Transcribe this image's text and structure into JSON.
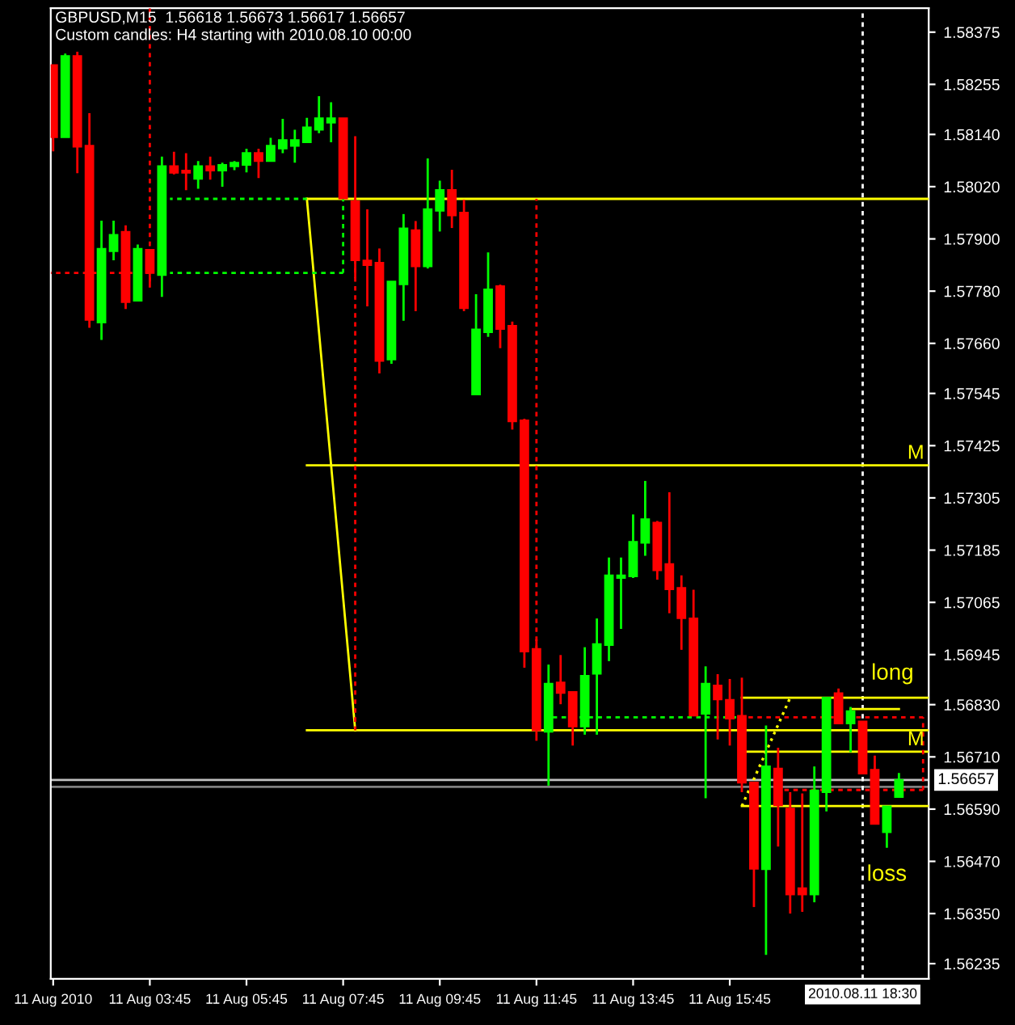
{
  "chart_data": {
    "type": "candlestick",
    "title": "GBPUSD,M15  1.56618 1.56673 1.56617 1.56657",
    "subtitle": "Custom candles: H4 starting with 2010.08.10 00:00",
    "x": [
      "2010-08-11T01:45",
      "2010-08-11T02:00",
      "2010-08-11T02:15",
      "2010-08-11T02:30",
      "2010-08-11T02:45",
      "2010-08-11T03:00",
      "2010-08-11T03:15",
      "2010-08-11T03:30",
      "2010-08-11T03:45",
      "2010-08-11T04:00",
      "2010-08-11T04:15",
      "2010-08-11T04:30",
      "2010-08-11T04:45",
      "2010-08-11T05:00",
      "2010-08-11T05:15",
      "2010-08-11T05:30",
      "2010-08-11T05:45",
      "2010-08-11T06:00",
      "2010-08-11T06:15",
      "2010-08-11T06:30",
      "2010-08-11T06:45",
      "2010-08-11T07:00",
      "2010-08-11T07:15",
      "2010-08-11T07:30",
      "2010-08-11T07:45",
      "2010-08-11T08:00",
      "2010-08-11T08:15",
      "2010-08-11T08:30",
      "2010-08-11T08:45",
      "2010-08-11T09:00",
      "2010-08-11T09:15",
      "2010-08-11T09:30",
      "2010-08-11T09:45",
      "2010-08-11T10:00",
      "2010-08-11T10:15",
      "2010-08-11T10:30",
      "2010-08-11T10:45",
      "2010-08-11T11:00",
      "2010-08-11T11:15",
      "2010-08-11T11:30",
      "2010-08-11T11:45",
      "2010-08-11T12:00",
      "2010-08-11T12:15",
      "2010-08-11T12:30",
      "2010-08-11T12:45",
      "2010-08-11T13:00",
      "2010-08-11T13:15",
      "2010-08-11T13:30",
      "2010-08-11T13:45",
      "2010-08-11T14:00",
      "2010-08-11T14:15",
      "2010-08-11T14:30",
      "2010-08-11T14:45",
      "2010-08-11T15:00",
      "2010-08-11T15:15",
      "2010-08-11T15:30",
      "2010-08-11T15:45",
      "2010-08-11T16:00",
      "2010-08-11T16:15",
      "2010-08-11T16:30",
      "2010-08-11T16:45",
      "2010-08-11T17:00",
      "2010-08-11T17:15",
      "2010-08-11T17:30",
      "2010-08-11T17:45",
      "2010-08-11T18:00",
      "2010-08-11T18:15",
      "2010-08-11T18:30",
      "2010-08-11T18:45",
      "2010-08-11T19:00",
      "2010-08-11T19:15"
    ],
    "ohlc": [
      [
        1.58299,
        1.58299,
        1.58101,
        1.58134
      ],
      [
        1.58134,
        1.58326,
        1.58134,
        1.5832
      ],
      [
        1.5832,
        1.5833,
        1.58051,
        1.58112
      ],
      [
        1.58114,
        1.58189,
        1.57696,
        1.57714
      ],
      [
        1.57708,
        1.57942,
        1.57668,
        1.57877
      ],
      [
        1.57872,
        1.57942,
        1.57851,
        1.57909
      ],
      [
        1.57916,
        1.57931,
        1.57739,
        1.57755
      ],
      [
        1.57758,
        1.57887,
        1.57758,
        1.57877
      ],
      [
        1.57875,
        1.57877,
        1.57788,
        1.57822
      ],
      [
        1.57817,
        1.58089,
        1.57767,
        1.58067
      ],
      [
        1.58067,
        1.581,
        1.58048,
        1.58052
      ],
      [
        1.58057,
        1.58097,
        1.58012,
        1.58052
      ],
      [
        1.58038,
        1.58079,
        1.58015,
        1.58067
      ],
      [
        1.58067,
        1.58089,
        1.58036,
        1.58057
      ],
      [
        1.58057,
        1.58075,
        1.5802,
        1.5807
      ],
      [
        1.58067,
        1.58079,
        1.58058,
        1.58075
      ],
      [
        1.5807,
        1.58107,
        1.58053,
        1.58097
      ],
      [
        1.58097,
        1.58107,
        1.5804,
        1.58079
      ],
      [
        1.58079,
        1.58132,
        1.58079,
        1.58114
      ],
      [
        1.58108,
        1.58176,
        1.58097,
        1.58127
      ],
      [
        1.58114,
        1.58151,
        1.58075,
        1.58127
      ],
      [
        1.58122,
        1.58178,
        1.58122,
        1.58156
      ],
      [
        1.58151,
        1.58228,
        1.58143,
        1.58177
      ],
      [
        1.58167,
        1.58214,
        1.58122,
        1.58177
      ],
      [
        1.58177,
        1.58177,
        1.57993,
        1.57993
      ],
      [
        1.57986,
        1.58136,
        1.5781,
        1.57851
      ],
      [
        1.5785,
        1.57968,
        1.57745,
        1.5784
      ],
      [
        1.57845,
        1.57878,
        1.57591,
        1.5762
      ],
      [
        1.57623,
        1.57802,
        1.57613,
        1.57802
      ],
      [
        1.57796,
        1.57957,
        1.57712,
        1.57924
      ],
      [
        1.5792,
        1.57941,
        1.57734,
        1.57837
      ],
      [
        1.57837,
        1.58085,
        1.57832,
        1.57968
      ],
      [
        1.57965,
        1.58034,
        1.57917,
        1.58012
      ],
      [
        1.58012,
        1.58059,
        1.57925,
        1.57954
      ],
      [
        1.5796,
        1.5799,
        1.57734,
        1.57741
      ],
      [
        1.57543,
        1.57773,
        1.57543,
        1.57692
      ],
      [
        1.57686,
        1.57869,
        1.57675,
        1.57784
      ],
      [
        1.57791,
        1.57795,
        1.57649,
        1.57693
      ],
      [
        1.577,
        1.5771,
        1.57462,
        1.57481
      ],
      [
        1.57483,
        1.57487,
        1.56915,
        1.56952
      ],
      [
        1.56958,
        1.5698,
        1.56747,
        1.56771
      ],
      [
        1.56768,
        1.56922,
        1.56644,
        1.56878
      ],
      [
        1.56881,
        1.56944,
        1.56831,
        1.56857
      ],
      [
        1.56859,
        1.56859,
        1.56736,
        1.5678
      ],
      [
        1.5678,
        1.56962,
        1.56761,
        1.56896
      ],
      [
        1.56901,
        1.57028,
        1.56761,
        1.56969
      ],
      [
        1.56967,
        1.57168,
        1.5693,
        1.57127
      ],
      [
        1.57121,
        1.57168,
        1.57004,
        1.57127
      ],
      [
        1.57125,
        1.57267,
        1.57121,
        1.57204
      ],
      [
        1.57202,
        1.57344,
        1.57172,
        1.57256
      ],
      [
        1.57248,
        1.57252,
        1.57117,
        1.57139
      ],
      [
        1.57153,
        1.57318,
        1.5704,
        1.57095
      ],
      [
        1.57098,
        1.57127,
        1.56956,
        1.57029
      ],
      [
        1.57028,
        1.57094,
        1.56805,
        1.56805
      ],
      [
        1.56809,
        1.56918,
        1.56615,
        1.56878
      ],
      [
        1.56874,
        1.569,
        1.5675,
        1.56842
      ],
      [
        1.56841,
        1.56889,
        1.56736,
        1.56798
      ],
      [
        1.56804,
        1.56892,
        1.56629,
        1.56651
      ],
      [
        1.56651,
        1.56651,
        1.56365,
        1.56453
      ],
      [
        1.56452,
        1.56782,
        1.56255,
        1.56688
      ],
      [
        1.56683,
        1.56731,
        1.56504,
        1.56599
      ],
      [
        1.56591,
        1.56629,
        1.5635,
        1.56394
      ],
      [
        1.56408,
        1.56626,
        1.56354,
        1.56394
      ],
      [
        1.56394,
        1.56688,
        1.56376,
        1.56633
      ],
      [
        1.56629,
        1.56846,
        1.56585,
        1.56846
      ],
      [
        1.56856,
        1.56867,
        1.56787,
        1.56787
      ],
      [
        1.56787,
        1.56825,
        1.56721,
        1.56815
      ],
      [
        1.56791,
        1.56791,
        1.56672,
        1.56672
      ],
      [
        1.5668,
        1.56713,
        1.56556,
        1.56556
      ],
      [
        1.56537,
        1.56596,
        1.56501,
        1.56596
      ],
      [
        1.56618,
        1.56673,
        1.56617,
        1.56657
      ]
    ],
    "colors": [
      "#ff0000",
      "#00ff00",
      "#ff0000",
      "#ff0000",
      "#00ff00",
      "#00ff00",
      "#ff0000",
      "#00ff00",
      "#ff0000",
      "#00ff00",
      "#ff0000",
      "#ff0000",
      "#00ff00",
      "#ff0000",
      "#00ff00",
      "#00ff00",
      "#00ff00",
      "#ff0000",
      "#00ff00",
      "#00ff00",
      "#00ff00",
      "#00ff00",
      "#00ff00",
      "#00ff00",
      "#ff0000",
      "#ff0000",
      "#ff0000",
      "#ff0000",
      "#00ff00",
      "#00ff00",
      "#ff0000",
      "#00ff00",
      "#00ff00",
      "#ff0000",
      "#ff0000",
      "#00ff00",
      "#00ff00",
      "#ff0000",
      "#ff0000",
      "#ff0000",
      "#ff0000",
      "#00ff00",
      "#ff0000",
      "#ff0000",
      "#00ff00",
      "#00ff00",
      "#00ff00",
      "#00ff00",
      "#00ff00",
      "#00ff00",
      "#ff0000",
      "#ff0000",
      "#ff0000",
      "#ff0000",
      "#00ff00",
      "#ff0000",
      "#ff0000",
      "#ff0000",
      "#ff0000",
      "#00ff00",
      "#ff0000",
      "#ff0000",
      "#ff0000",
      "#00ff00",
      "#00ff00",
      "#ff0000",
      "#00ff00",
      "#ff0000",
      "#ff0000",
      "#00ff00",
      "#00ff00"
    ],
    "series": [
      {
        "type": "line",
        "color": "#ffff00",
        "line_style": "solid",
        "x": [
          "2010-08-11T07:00",
          "2010-08-11T19:52"
        ],
        "values": [
          1.57992,
          1.57992
        ]
      },
      {
        "type": "line",
        "color": "#ffff00",
        "line_style": "solid",
        "x": [
          "2010-08-11T07:00",
          "2010-08-11T19:52"
        ],
        "values": [
          1.5738,
          1.5738
        ]
      },
      {
        "type": "line",
        "color": "#ffff00",
        "line_style": "solid",
        "x": [
          "2010-08-11T07:00",
          "2010-08-11T19:52"
        ],
        "values": [
          1.56771,
          1.56771
        ]
      },
      {
        "type": "line",
        "color": "#ffff00",
        "line_style": "solid",
        "x": [
          "2010-08-11T07:00",
          "2010-08-11T08:00"
        ],
        "values": [
          1.57992,
          1.56771
        ]
      },
      {
        "type": "line",
        "color": "#ffff00",
        "line_style": "solid",
        "x": [
          "2010-08-11T16:00",
          "2010-08-11T19:52"
        ],
        "values": [
          1.56846,
          1.56846
        ]
      },
      {
        "type": "line",
        "color": "#ffff00",
        "line_style": "solid",
        "x": [
          "2010-08-11T16:00",
          "2010-08-11T19:52"
        ],
        "values": [
          1.56722,
          1.56722
        ]
      },
      {
        "type": "line",
        "color": "#ffff00",
        "line_style": "solid",
        "x": [
          "2010-08-11T16:00",
          "2010-08-11T19:52"
        ],
        "values": [
          1.56597,
          1.56597
        ]
      },
      {
        "type": "line",
        "color": "#ffff00",
        "line_style": "dotted",
        "x": [
          "2010-08-11T16:00",
          "2010-08-11T17:00"
        ],
        "values": [
          1.56597,
          1.56846
        ]
      },
      {
        "type": "line",
        "color": "#ffff00",
        "line_style": "solid",
        "x": [
          "2010-08-11T18:15",
          "2010-08-11T19:15"
        ],
        "values": [
          1.5682,
          1.5682
        ]
      },
      {
        "type": "line",
        "color": "#ff0000",
        "line_style": "dashed",
        "x": [
          "2010-08-11T01:42",
          "2010-08-11T03:45"
        ],
        "values": [
          1.57822,
          1.57822
        ]
      },
      {
        "type": "line",
        "color": "#ff0000",
        "line_style": "dashed",
        "x": [
          "2010-08-11T03:45",
          "2010-08-11T03:45"
        ],
        "values": [
          1.5843,
          1.57802
        ]
      },
      {
        "type": "line",
        "color": "#00ff00",
        "line_style": "dashed",
        "x": [
          "2010-08-11T04:10",
          "2010-08-11T07:45"
        ],
        "values": [
          1.57822,
          1.57822
        ]
      },
      {
        "type": "line",
        "color": "#00ff00",
        "line_style": "dashed",
        "x": [
          "2010-08-11T04:10",
          "2010-08-11T07:00"
        ],
        "values": [
          1.57992,
          1.57992
        ]
      },
      {
        "type": "line",
        "color": "#00ff00",
        "line_style": "dashed",
        "x": [
          "2010-08-11T07:45",
          "2010-08-11T07:45"
        ],
        "values": [
          1.57992,
          1.57822
        ]
      },
      {
        "type": "line",
        "color": "#ff0000",
        "line_style": "dashed",
        "x": [
          "2010-08-11T08:00",
          "2010-08-11T08:00"
        ],
        "values": [
          1.57992,
          1.56771
        ]
      },
      {
        "type": "line",
        "color": "#ff0000",
        "line_style": "dashed",
        "x": [
          "2010-08-11T11:45",
          "2010-08-11T11:45"
        ],
        "values": [
          1.57992,
          1.56771
        ]
      },
      {
        "type": "line",
        "color": "#00ff00",
        "line_style": "dashed",
        "x": [
          "2010-08-11T12:00",
          "2010-08-11T15:53"
        ],
        "values": [
          1.56801,
          1.56801
        ]
      },
      {
        "type": "line",
        "color": "#ff0000",
        "line_style": "dashed",
        "x": [
          "2010-08-11T16:07",
          "2010-08-11T19:45"
        ],
        "values": [
          1.56801,
          1.56801
        ]
      },
      {
        "type": "line",
        "color": "#ff0000",
        "line_style": "dashed",
        "x": [
          "2010-08-11T19:45",
          "2010-08-11T19:45"
        ],
        "values": [
          1.56801,
          1.56634
        ]
      },
      {
        "type": "line",
        "color": "#ff0000",
        "line_style": "dashed",
        "x": [
          "2010-08-11T16:45",
          "2010-08-11T19:45"
        ],
        "values": [
          1.56634,
          1.56634
        ]
      }
    ],
    "ref_lines": [
      {
        "axis": "y",
        "value": 1.56641,
        "color": "#808080",
        "line_style": "solid"
      },
      {
        "axis": "y",
        "value": 1.56657,
        "label": "1.56657",
        "color": "#c0c0c0",
        "line_style": "solid"
      },
      {
        "axis": "x",
        "value": "2010-08-11T18:30",
        "label": "2010.08.11 18:30",
        "color": "#ffffff",
        "line_style": "dashed"
      }
    ],
    "annotations": [
      {
        "text": "M",
        "x": "2010-08-11T19:52",
        "y": 1.5738
      },
      {
        "text": "long",
        "x": "2010-08-11T19:07",
        "y": 1.56846
      },
      {
        "text": "M",
        "x": "2010-08-11T19:52",
        "y": 1.56722
      },
      {
        "text": "loss",
        "x": "2010-08-11T19:00",
        "y": 1.56597
      }
    ],
    "xlim": [
      "2010-08-11T01:42",
      "2010-08-11T19:52"
    ],
    "ylim": [
      1.562,
      1.5843
    ],
    "xticks": [
      {
        "value": "2010-08-11T01:45",
        "label": "11 Aug 2010"
      },
      {
        "value": "2010-08-11T03:45",
        "label": "11 Aug 03:45"
      },
      {
        "value": "2010-08-11T05:45",
        "label": "11 Aug 05:45"
      },
      {
        "value": "2010-08-11T07:45",
        "label": "11 Aug 07:45"
      },
      {
        "value": "2010-08-11T09:45",
        "label": "11 Aug 09:45"
      },
      {
        "value": "2010-08-11T11:45",
        "label": "11 Aug 11:45"
      },
      {
        "value": "2010-08-11T13:45",
        "label": "11 Aug 13:45"
      },
      {
        "value": "2010-08-11T15:45",
        "label": "11 Aug 15:45"
      }
    ],
    "yticks": [
      1.58375,
      1.58255,
      {
        "value": 1.5814,
        "label": "1.58140"
      },
      {
        "value": 1.5802,
        "label": "1.58020"
      },
      {
        "value": 1.579,
        "label": "1.57900"
      },
      {
        "value": 1.5778,
        "label": "1.57780"
      },
      {
        "value": 1.5766,
        "label": "1.57660"
      },
      1.57545,
      1.57425,
      1.57305,
      1.57185,
      1.57065,
      1.56945,
      {
        "value": 1.5683,
        "label": "1.56830"
      },
      {
        "value": 1.5671,
        "label": "1.56710"
      },
      {
        "value": 1.5659,
        "label": "1.56590"
      },
      {
        "value": 1.5647,
        "label": "1.56470"
      },
      {
        "value": 1.5635,
        "label": "1.56350"
      },
      1.56235
    ],
    "grid": false
  }
}
